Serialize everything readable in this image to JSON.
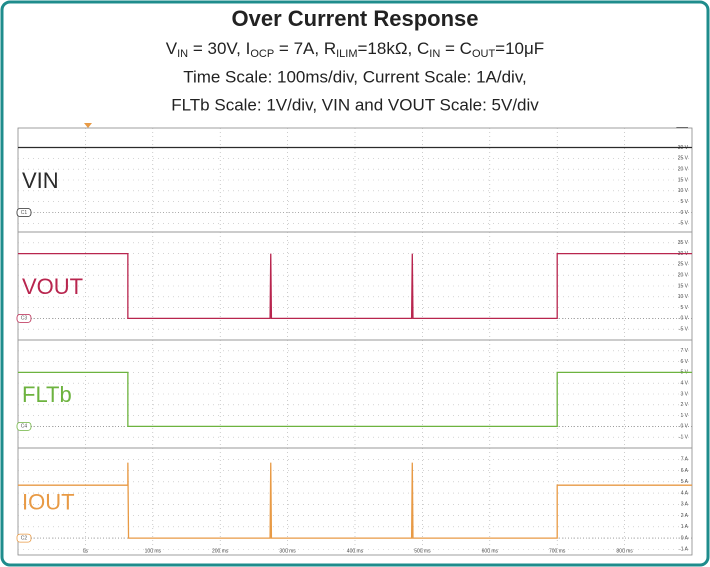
{
  "header": {
    "title": "Over Current Response",
    "line1": [
      "V",
      "IN",
      " = 30V, I",
      "OCP",
      " = 7A, R",
      "ILIM",
      "=18kΩ, C",
      "IN",
      " = C",
      "OUT",
      "=10μF"
    ],
    "line2": "Time Scale: 100ms/div, Current Scale: 1A/div,",
    "line3": "FLTb Scale: 1V/div, VIN and VOUT Scale: 5V/div"
  },
  "chart_data": [
    {
      "type": "line",
      "channel": "C1",
      "xlim": [
        -100,
        900
      ],
      "ylim": [
        -9,
        39
      ],
      "grid": true,
      "yticks": [
        {
          "value": 30,
          "label": "30 V"
        },
        {
          "value": 25,
          "label": "25 V"
        },
        {
          "value": 20,
          "label": "20 V"
        },
        {
          "value": 15,
          "label": "15 V"
        },
        {
          "value": 10,
          "label": "10 V"
        },
        {
          "value": 5,
          "label": "5 V"
        },
        {
          "value": 0,
          "label": "0 V"
        },
        {
          "value": -5,
          "label": "-5 V"
        }
      ],
      "series": [
        {
          "name": "VIN",
          "color": "#2b2b2b",
          "x": [
            -100,
            900
          ],
          "values": [
            30,
            30
          ]
        }
      ]
    },
    {
      "type": "line",
      "channel": "C3",
      "xlim": [
        -100,
        900
      ],
      "ylim": [
        -10,
        40
      ],
      "grid": true,
      "yticks": [
        {
          "value": 35,
          "label": "35 V"
        },
        {
          "value": 30,
          "label": "30 V"
        },
        {
          "value": 25,
          "label": "25 V"
        },
        {
          "value": 20,
          "label": "20 V"
        },
        {
          "value": 15,
          "label": "15 V"
        },
        {
          "value": 10,
          "label": "10 V"
        },
        {
          "value": 5,
          "label": "5 V"
        },
        {
          "value": 0,
          "label": "0 V"
        },
        {
          "value": -5,
          "label": "-5 V"
        }
      ],
      "series": [
        {
          "name": "VOUT",
          "color": "#b8254e",
          "x": [
            -100,
            63,
            63,
            274,
            275,
            276,
            484,
            485,
            486,
            700,
            700,
            900
          ],
          "values": [
            30,
            30,
            0,
            0,
            30,
            0,
            0,
            30,
            0,
            0,
            30,
            30
          ]
        }
      ]
    },
    {
      "type": "line",
      "channel": "C4",
      "xlim": [
        -100,
        900
      ],
      "ylim": [
        -2,
        8
      ],
      "grid": true,
      "yticks": [
        {
          "value": 7,
          "label": "7 V"
        },
        {
          "value": 6,
          "label": "6 V"
        },
        {
          "value": 5,
          "label": "5 V"
        },
        {
          "value": 4,
          "label": "4 V"
        },
        {
          "value": 3,
          "label": "3 V"
        },
        {
          "value": 2,
          "label": "2 V"
        },
        {
          "value": 1,
          "label": "1 V"
        },
        {
          "value": 0,
          "label": "0 V"
        },
        {
          "value": -1,
          "label": "-1 V"
        }
      ],
      "series": [
        {
          "name": "FLTb",
          "color": "#6db33f",
          "x": [
            -100,
            63,
            63,
            700,
            700,
            900
          ],
          "values": [
            5,
            5,
            0,
            0,
            5,
            5
          ]
        }
      ]
    },
    {
      "type": "line",
      "channel": "C2",
      "xlim": [
        -100,
        900
      ],
      "ylim": [
        -1.5,
        8
      ],
      "grid": true,
      "yticks": [
        {
          "value": 7,
          "label": "7 A"
        },
        {
          "value": 6,
          "label": "6 A"
        },
        {
          "value": 5,
          "label": "5 A"
        },
        {
          "value": 4,
          "label": "4 A"
        },
        {
          "value": 3,
          "label": "3 A"
        },
        {
          "value": 2,
          "label": "2 A"
        },
        {
          "value": 1,
          "label": "1 A"
        },
        {
          "value": 0,
          "label": "0 A"
        },
        {
          "value": -1,
          "label": "-1 A"
        }
      ],
      "xticks": [
        {
          "value": 0,
          "label": "0s"
        },
        {
          "value": 100,
          "label": "100 ms"
        },
        {
          "value": 200,
          "label": "200 ms"
        },
        {
          "value": 300,
          "label": "300 ms"
        },
        {
          "value": 400,
          "label": "400 ms"
        },
        {
          "value": 500,
          "label": "500 ms"
        },
        {
          "value": 600,
          "label": "600 ms"
        },
        {
          "value": 700,
          "label": "700 ms"
        },
        {
          "value": 800,
          "label": "800 ms"
        }
      ],
      "series": [
        {
          "name": "IOUT",
          "color": "#e89a45",
          "x": [
            -100,
            63,
            63,
            64,
            274,
            275,
            276,
            484,
            485,
            486,
            700,
            700,
            900
          ],
          "values": [
            4.7,
            4.7,
            6.7,
            0,
            0,
            6.7,
            0,
            0,
            6.7,
            0,
            0,
            4.7,
            4.7
          ]
        }
      ]
    }
  ]
}
